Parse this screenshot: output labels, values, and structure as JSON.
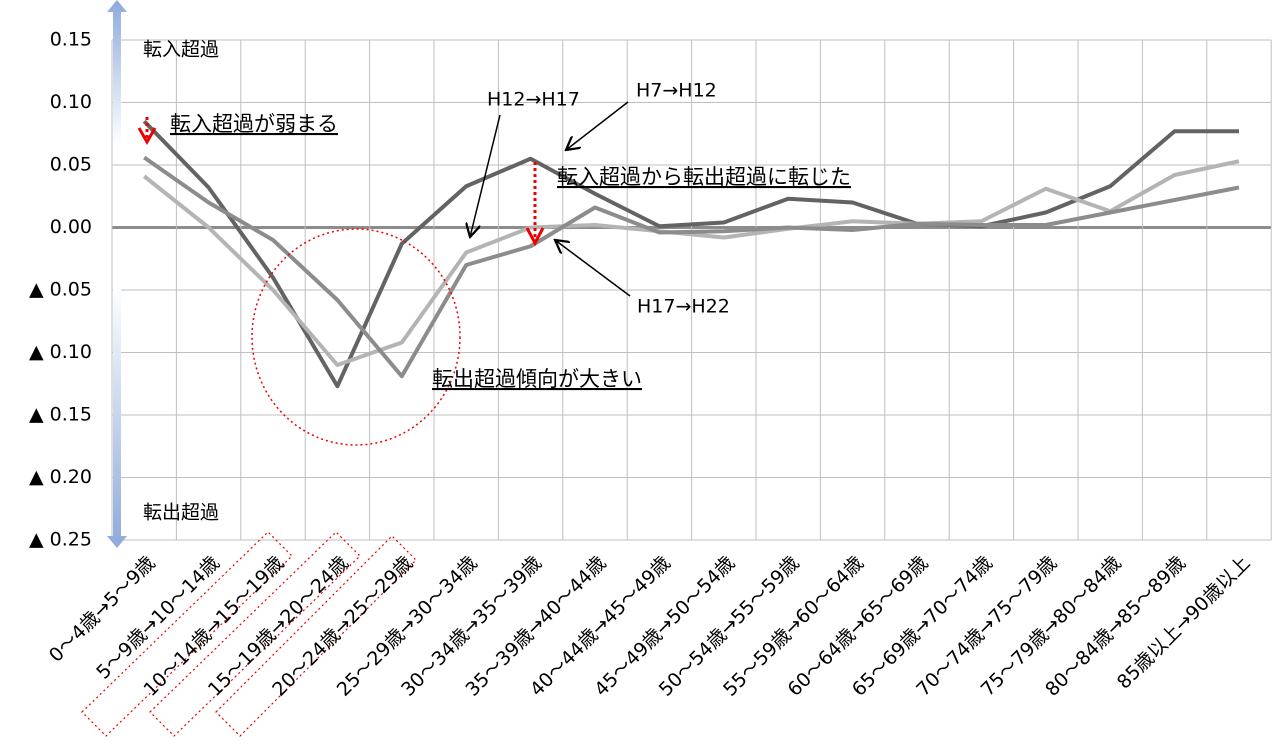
{
  "chart_data": {
    "type": "line",
    "categories": [
      "0～4歳→5～9歳",
      "5～9歳→10～14歳",
      "10～14歳→15～19歳",
      "15～19歳→20～24歳",
      "20～24歳→25～29歳",
      "25～29歳→30～34歳",
      "30～34歳→35～39歳",
      "35～39歳→40～44歳",
      "40～44歳→45～49歳",
      "45～49歳→50～54歳",
      "50～54歳→55～59歳",
      "55～59歳→60～64歳",
      "60～64歳→65～69歳",
      "65～69歳→70～74歳",
      "70～74歳→75～79歳",
      "75～79歳→80～84歳",
      "80～84歳→85～89歳",
      "85歳以上→90歳以上"
    ],
    "series": [
      {
        "name": "H7→H12",
        "color": "#636363",
        "values": [
          0.085,
          0.032,
          -0.04,
          -0.127,
          -0.013,
          0.033,
          0.055,
          0.027,
          0.001,
          0.004,
          0.023,
          0.02,
          0.003,
          0.001,
          0.012,
          0.033,
          0.077,
          0.077
        ]
      },
      {
        "name": "H12→H17",
        "color": "#b4b4b4",
        "values": [
          0.041,
          0.0,
          -0.05,
          -0.11,
          -0.092,
          -0.02,
          0.0,
          0.002,
          -0.003,
          -0.008,
          -0.001,
          0.005,
          0.003,
          0.005,
          0.031,
          0.013,
          0.042,
          0.053
        ]
      },
      {
        "name": "H17→H22",
        "color": "#8c8c8c",
        "values": [
          0.056,
          0.02,
          -0.01,
          -0.058,
          -0.119,
          -0.03,
          -0.015,
          0.016,
          -0.004,
          -0.003,
          0.0,
          -0.002,
          0.003,
          0.002,
          0.002,
          0.012,
          0.022,
          0.032
        ]
      }
    ],
    "ylim": [
      -0.25,
      0.15
    ],
    "yticks": [
      0.15,
      {
        "value": 0.1,
        "label": "0.10"
      },
      0.05,
      {
        "value": 0,
        "label": "0.00"
      },
      {
        "value": -0.05,
        "label": "▲ 0.05"
      },
      {
        "value": -0.1,
        "label": "▲ 0.10"
      },
      {
        "value": -0.15,
        "label": "▲ 0.15"
      },
      {
        "value": -0.2,
        "label": "▲ 0.20"
      },
      {
        "value": -0.25,
        "label": "▲ 0.25"
      }
    ],
    "grid": true,
    "annotations": [
      "転入超過",
      "転出超過",
      "転入超過が弱まる",
      "転入超過から転出超過に転じた",
      "転出超過傾向が大きい"
    ]
  }
}
